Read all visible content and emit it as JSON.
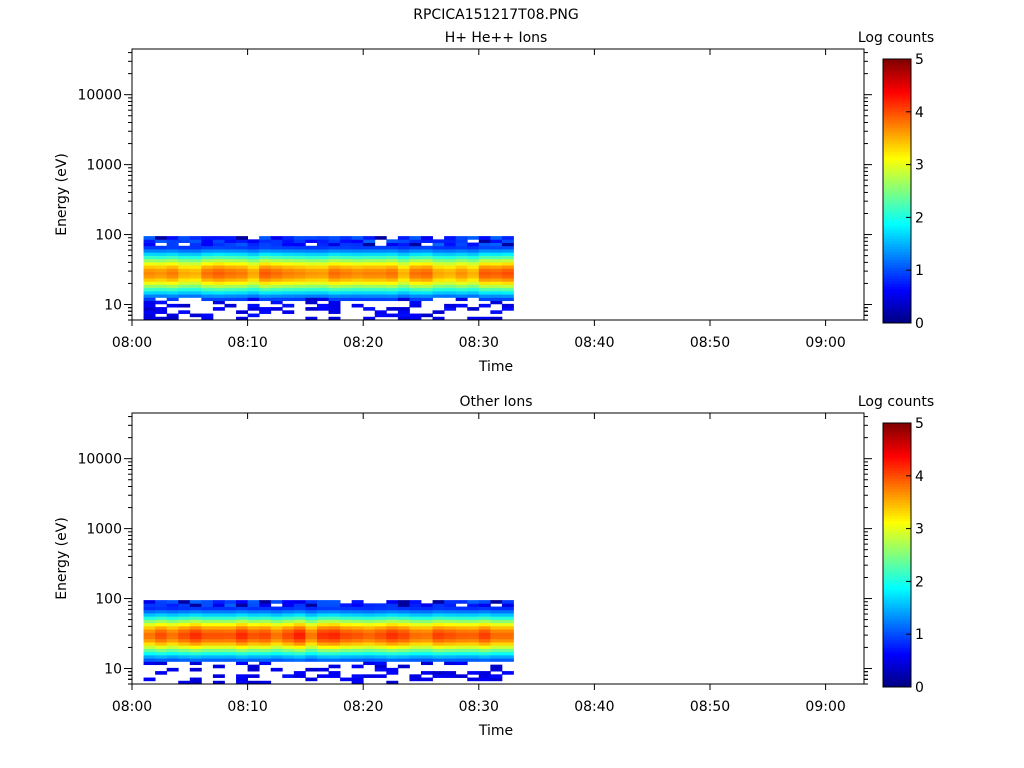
{
  "figure_title": "RPCICA151217T08.PNG",
  "chart_data": [
    {
      "type": "heatmap",
      "title": "H+ He++ Ions",
      "xlabel": "Time",
      "ylabel": "Energy (eV)",
      "x_ticks": [
        "08:00",
        "08:10",
        "08:20",
        "08:30",
        "08:40",
        "08:50",
        "09:00"
      ],
      "x_range": [
        "08:00",
        "09:03"
      ],
      "y_scale": "log",
      "y_ticks": [
        10,
        100,
        1000,
        10000
      ],
      "y_tick_labels": [
        "10",
        "100",
        "1000",
        "10000"
      ],
      "y_range": [
        6,
        45000
      ],
      "data_time_range": [
        "08:01",
        "08:33"
      ],
      "data_energy_range_eV": [
        6,
        95
      ],
      "peak_energy_eV": 28,
      "peak_log_counts": 3.9,
      "colorbar": {
        "label": "Log counts",
        "range": [
          0,
          5
        ],
        "ticks": [
          "0",
          "1",
          "2",
          "3",
          "4",
          "5"
        ],
        "colormap": "jet"
      }
    },
    {
      "type": "heatmap",
      "title": "Other Ions",
      "xlabel": "Time",
      "ylabel": "Energy (eV)",
      "x_ticks": [
        "08:00",
        "08:10",
        "08:20",
        "08:30",
        "08:40",
        "08:50",
        "09:00"
      ],
      "x_range": [
        "08:00",
        "09:03"
      ],
      "y_scale": "log",
      "y_ticks": [
        10,
        100,
        1000,
        10000
      ],
      "y_tick_labels": [
        "10",
        "100",
        "1000",
        "10000"
      ],
      "y_range": [
        6,
        45000
      ],
      "data_time_range": [
        "08:01",
        "08:33"
      ],
      "data_energy_range_eV": [
        6,
        95
      ],
      "peak_energy_eV": 30,
      "peak_log_counts": 4.2,
      "colorbar": {
        "label": "Log counts",
        "range": [
          0,
          5
        ],
        "ticks": [
          "0",
          "1",
          "2",
          "3",
          "4",
          "5"
        ],
        "colormap": "jet"
      }
    }
  ]
}
